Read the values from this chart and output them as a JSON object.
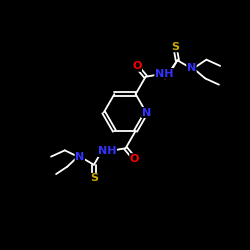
{
  "background_color": "#000000",
  "bond_color": "#ffffff",
  "atom_colors": {
    "N": "#3333ff",
    "O": "#ff0000",
    "S": "#ccaa00",
    "C": "#ffffff",
    "H": "#ffffff"
  },
  "font_size": 8,
  "figsize": [
    2.5,
    2.5
  ],
  "dpi": 100,
  "lw": 1.3
}
